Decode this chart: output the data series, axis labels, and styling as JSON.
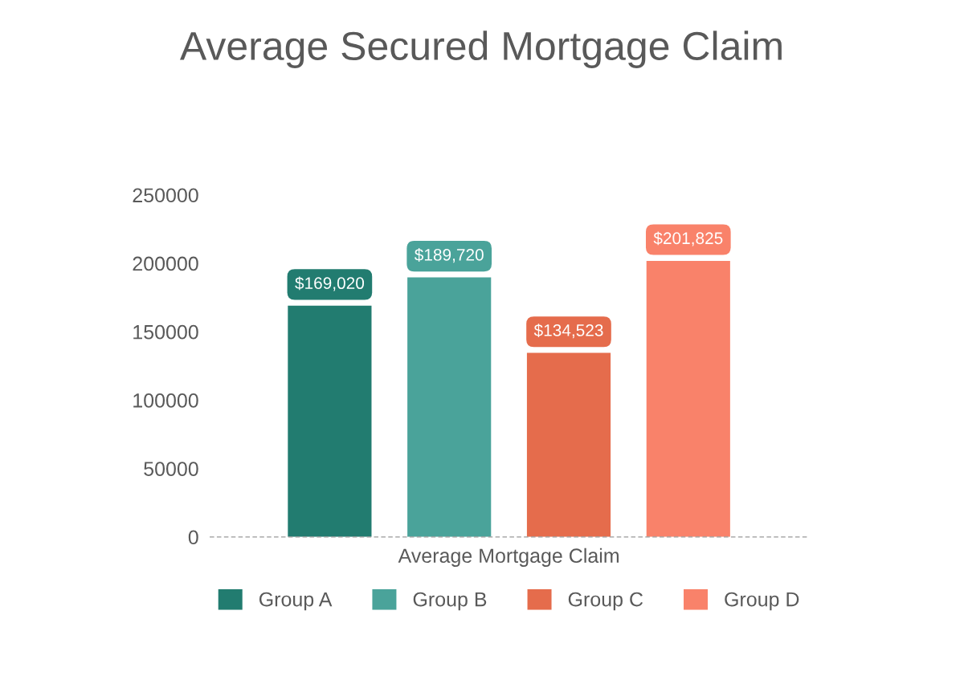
{
  "chart_data": {
    "type": "bar",
    "title": "Average Secured Mortgage Claim",
    "categories": [
      "Average Mortgage Claim"
    ],
    "series": [
      {
        "name": "Group A",
        "color": "#227c70",
        "values": [
          169020
        ],
        "value_labels": [
          "$169,020"
        ]
      },
      {
        "name": "Group B",
        "color": "#4aa39a",
        "values": [
          189720
        ],
        "value_labels": [
          "$189,720"
        ]
      },
      {
        "name": "Group C",
        "color": "#e56c4c",
        "values": [
          134523
        ],
        "value_labels": [
          "$134,523"
        ]
      },
      {
        "name": "Group D",
        "color": "#f9826a",
        "values": [
          201825
        ],
        "value_labels": [
          "$201,825"
        ]
      }
    ],
    "ylim": [
      0,
      250000
    ],
    "yticks": [
      0,
      50000,
      100000,
      150000,
      200000,
      250000
    ],
    "grid": false,
    "legend": "bottom"
  }
}
